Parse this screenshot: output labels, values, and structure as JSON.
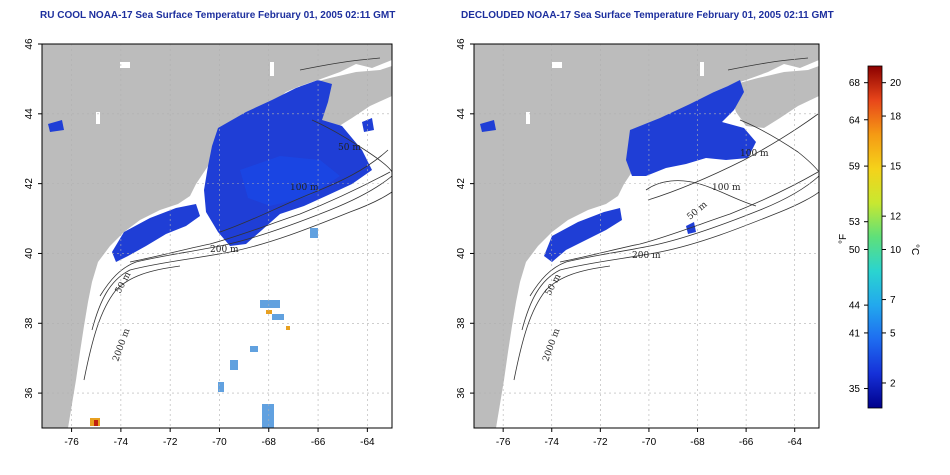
{
  "titles": {
    "left": "RU COOL NOAA-17 Sea Surface Temperature February 01, 2005 02:11 GMT",
    "right": "DECLOUDED NOAA-17 Sea Surface Temperature February 01, 2005 02:11 GMT"
  },
  "axes": {
    "lon_ticks": [
      "-76",
      "-74",
      "-72",
      "-70",
      "-68",
      "-66",
      "-64"
    ],
    "lat_ticks": [
      "46",
      "44",
      "42",
      "40",
      "38",
      "36"
    ],
    "lon_range": [
      -77.2,
      -63.0
    ],
    "lat_range": [
      35.0,
      46.0
    ]
  },
  "contour_labels": {
    "left": [
      "50 m",
      "100 m",
      "200 m",
      "50 m",
      "2000 m"
    ],
    "right": [
      "100 m",
      "100 m",
      "50 m",
      "200 m",
      "50 m",
      "2000 m"
    ]
  },
  "colorbar": {
    "f_label": "°F",
    "c_label": "°C",
    "f_ticks": [
      {
        "label": "68",
        "temp_f": 68
      },
      {
        "label": "64",
        "temp_f": 64
      },
      {
        "label": "59",
        "temp_f": 59
      },
      {
        "label": "53",
        "temp_f": 53
      },
      {
        "label": "50",
        "temp_f": 50
      },
      {
        "label": "44",
        "temp_f": 44
      },
      {
        "label": "41",
        "temp_f": 41
      },
      {
        "label": "35",
        "temp_f": 35
      }
    ],
    "c_ticks": [
      {
        "label": "20",
        "temp_c": 20
      },
      {
        "label": "18",
        "temp_c": 18
      },
      {
        "label": "15",
        "temp_c": 15
      },
      {
        "label": "12",
        "temp_c": 12
      },
      {
        "label": "10",
        "temp_c": 10
      },
      {
        "label": "7",
        "temp_c": 7
      },
      {
        "label": "5",
        "temp_c": 5
      },
      {
        "label": "2",
        "temp_c": 2
      }
    ],
    "colors": [
      "#00008b",
      "#1530d8",
      "#1e6cf0",
      "#22a8ee",
      "#2ad4d0",
      "#5ee07a",
      "#c8e830",
      "#f5d21a",
      "#f59a14",
      "#e8461a",
      "#8b0000"
    ]
  },
  "colors": {
    "land": "#bcbcbc",
    "ocean": "#ffffff",
    "sst_cold": "#1f3ed6",
    "contour": "#333333",
    "grid": "#b0b0b0",
    "title": "#1d2f9e"
  }
}
